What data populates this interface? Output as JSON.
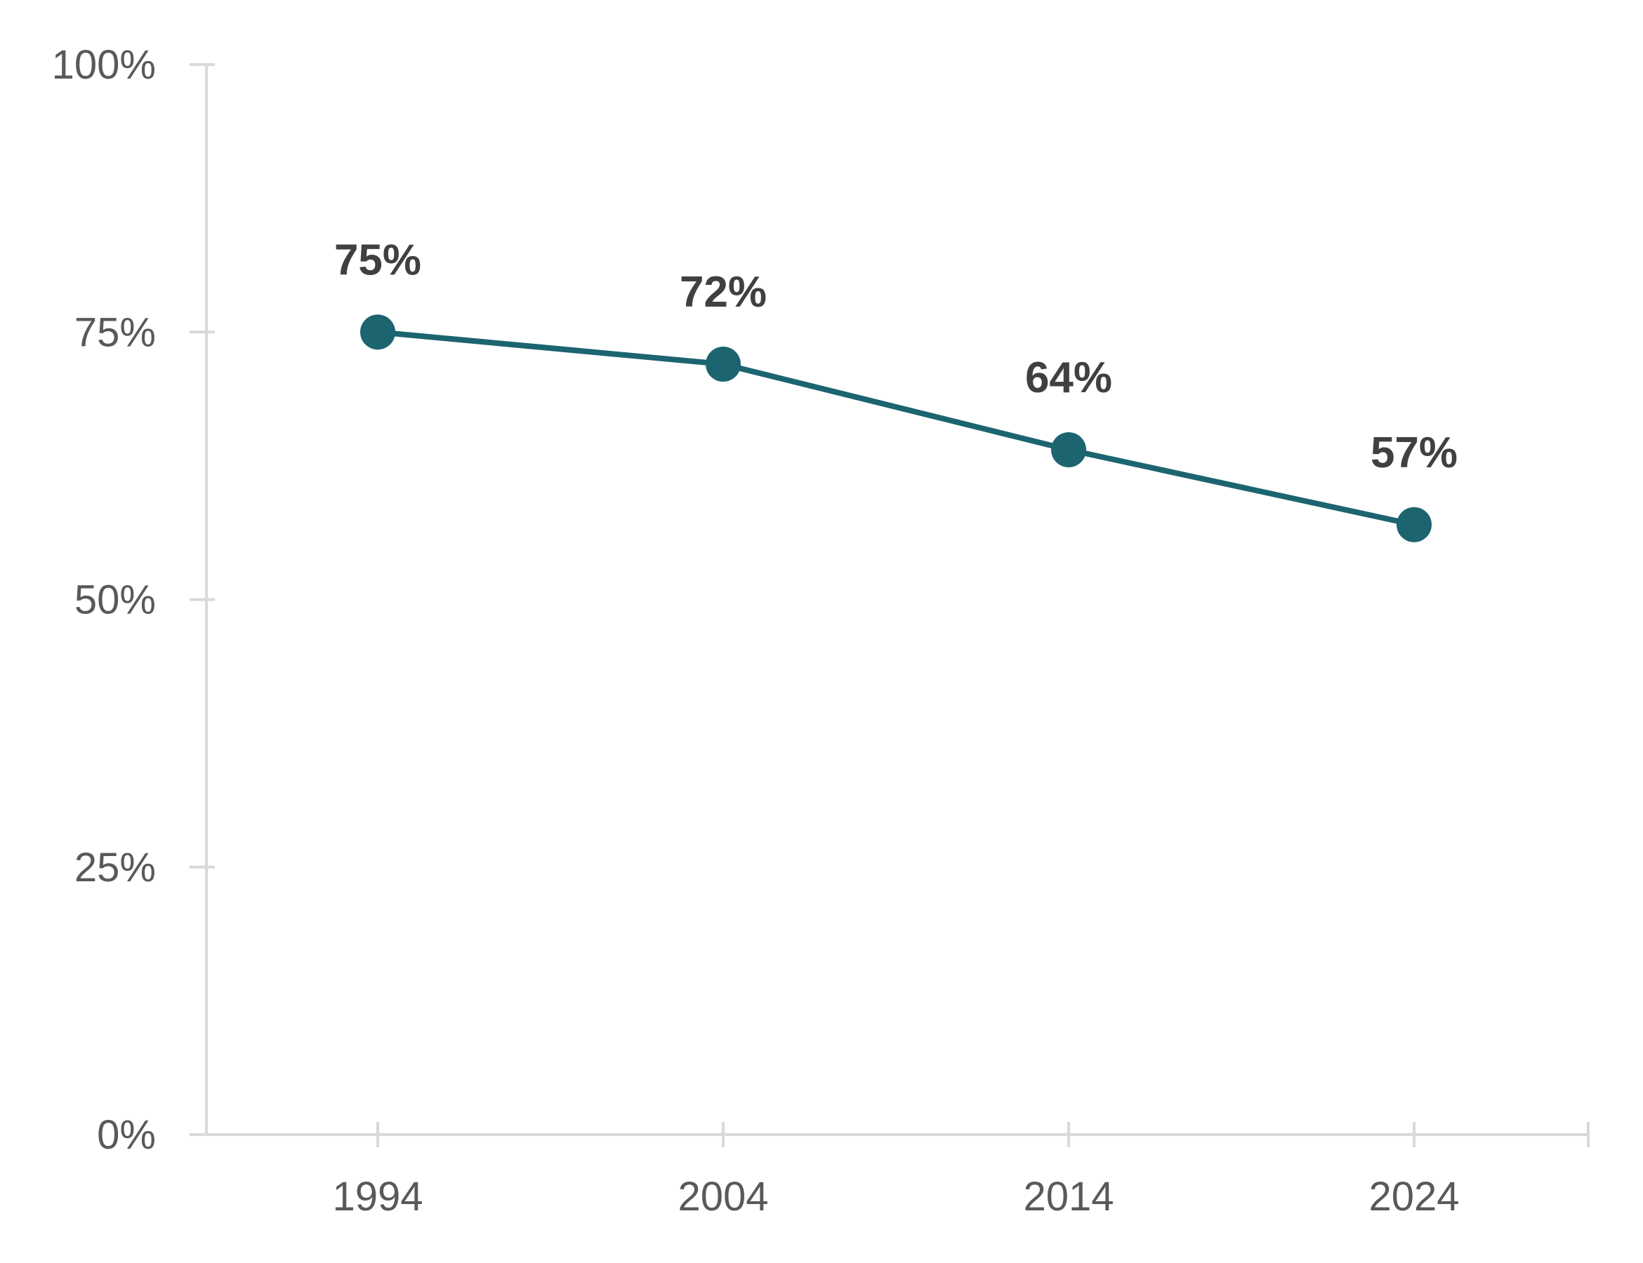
{
  "chart_data": {
    "type": "line",
    "title": "",
    "xlabel": "",
    "ylabel": "",
    "categories": [
      "1994",
      "2004",
      "2014",
      "2024"
    ],
    "series": [
      {
        "values": [
          75,
          72,
          64,
          57
        ],
        "data_labels": [
          "75%",
          "72%",
          "64%",
          "57%"
        ],
        "color": "#1b6470"
      }
    ],
    "ylim": [
      0,
      100
    ],
    "y_ticks": [
      0,
      25,
      50,
      75,
      100
    ],
    "y_tick_labels": [
      "0%",
      "25%",
      "50%",
      "75%",
      "100%"
    ],
    "grid": false,
    "legend": "none",
    "axis_color": "#d9d9d9"
  }
}
